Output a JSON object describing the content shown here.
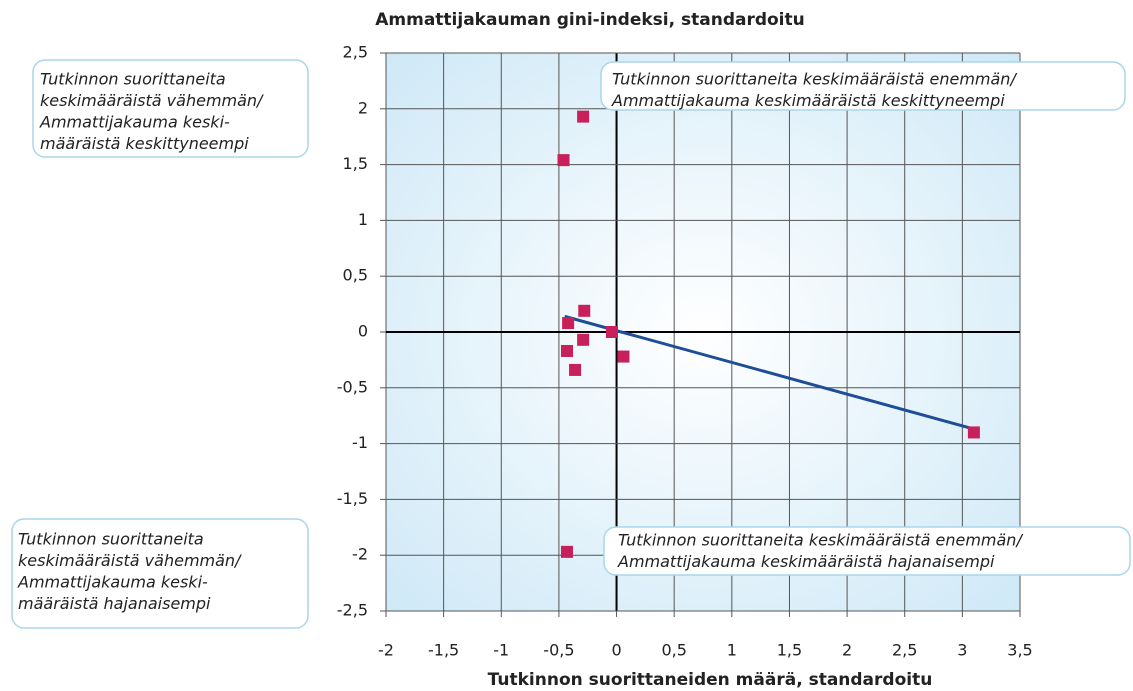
{
  "chart_data": {
    "type": "scatter",
    "title": "Ammattijakauman gini-indeksi, standardoitu",
    "x_label": "Tutkinnon suorittaneiden määrä, standardoitu",
    "x": [
      -0.29,
      -0.46,
      -0.28,
      -0.42,
      -0.29,
      -0.43,
      -0.04,
      0.06,
      -0.36,
      3.1,
      -0.43
    ],
    "values": [
      1.93,
      1.54,
      0.19,
      0.08,
      -0.07,
      -0.17,
      0.0,
      -0.22,
      -0.34,
      -0.9,
      -1.97
    ],
    "color": "#c8205a",
    "trendline": {
      "x": [
        -0.45,
        3.1
      ],
      "y": [
        0.14,
        -0.87
      ],
      "color": "#1f4e96"
    },
    "xlim": [
      -2,
      3.5
    ],
    "xticks": [
      -2,
      {
        "value": -1.5,
        "label": "-1,5"
      },
      -1,
      {
        "value": -0.5,
        "label": "-0,5"
      },
      0,
      {
        "value": 0.5,
        "label": "0,5"
      },
      1,
      {
        "value": 1.5,
        "label": "1,5"
      },
      2,
      {
        "value": 2.5,
        "label": "2,5"
      },
      3,
      {
        "value": 3.5,
        "label": "3,5"
      }
    ],
    "ylim": [
      -2.5,
      2.5
    ],
    "yticks": [
      {
        "value": 2.5,
        "label": "2,5"
      },
      2,
      {
        "value": 1.5,
        "label": "1,5"
      },
      1,
      {
        "value": 0.5,
        "label": "0,5"
      },
      0,
      {
        "value": -0.5,
        "label": "-0,5"
      },
      -1,
      {
        "value": -1.5,
        "label": "-1,5"
      },
      -2,
      {
        "value": -2.5,
        "label": "-2,5"
      }
    ],
    "grid": true,
    "annotations": [
      [
        "Tutkinnon suorittaneita",
        "keskimääräistä vähemmän/",
        "Ammattijakauma keski-",
        "määräistä keskittyneempi"
      ],
      [
        "Tutkinnon suorittaneita keskimääräistä enemmän/",
        "Ammattijakauma keskimääräistä keskittyneempi"
      ],
      [
        "Tutkinnon suorittaneita",
        "keskimääräistä vähemmän/",
        "Ammattijakauma keski-",
        "määräistä hajanaisempi"
      ],
      [
        "Tutkinnon suorittaneita keskimääräistä enemmän/",
        "Ammattijakauma keskimääräistä hajanaisempi"
      ]
    ]
  }
}
